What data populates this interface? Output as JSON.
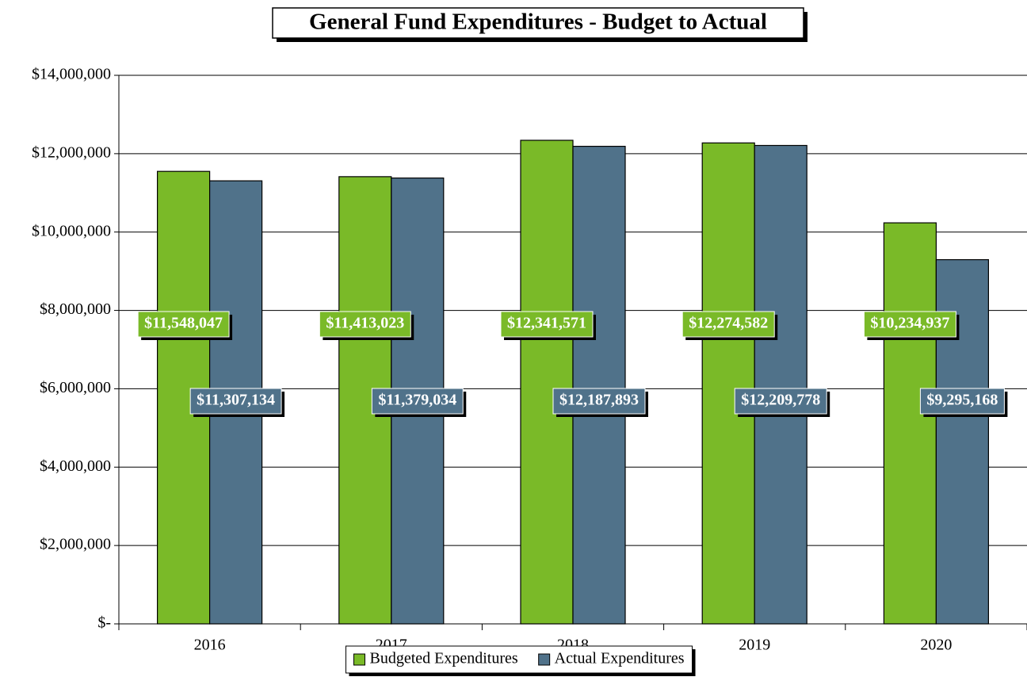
{
  "chart_data": {
    "type": "bar",
    "title": "General Fund Expenditures - Budget to Actual",
    "categories": [
      "2016",
      "2017",
      "2018",
      "2019",
      "2020"
    ],
    "series": [
      {
        "name": "Budgeted Expenditures",
        "color": "#7aba28",
        "values": [
          11548047,
          11413023,
          12341571,
          12274582,
          10234937
        ],
        "value_labels": [
          "$11,548,047",
          "$11,413,023",
          "$12,341,571",
          "$12,274,582",
          "$10,234,937"
        ]
      },
      {
        "name": "Actual Expenditures",
        "color": "#50728a",
        "values": [
          11307134,
          11379034,
          12187893,
          12209778,
          9295168
        ],
        "value_labels": [
          "$11,307,134",
          "$11,379,034",
          "$12,187,893",
          "$12,209,778",
          "$9,295,168"
        ]
      }
    ],
    "ylim": [
      0,
      14000000
    ],
    "yticks": [
      {
        "value": 0,
        "label": "$-"
      },
      {
        "value": 2000000,
        "label": "$2,000,000"
      },
      {
        "value": 4000000,
        "label": "$4,000,000"
      },
      {
        "value": 6000000,
        "label": "$6,000,000"
      },
      {
        "value": 8000000,
        "label": "$8,000,000"
      },
      {
        "value": 10000000,
        "label": "$10,000,000"
      },
      {
        "value": 12000000,
        "label": "$12,000,000"
      },
      {
        "value": 14000000,
        "label": "$14,000,000"
      }
    ],
    "grid": true,
    "legend": "bottom"
  }
}
